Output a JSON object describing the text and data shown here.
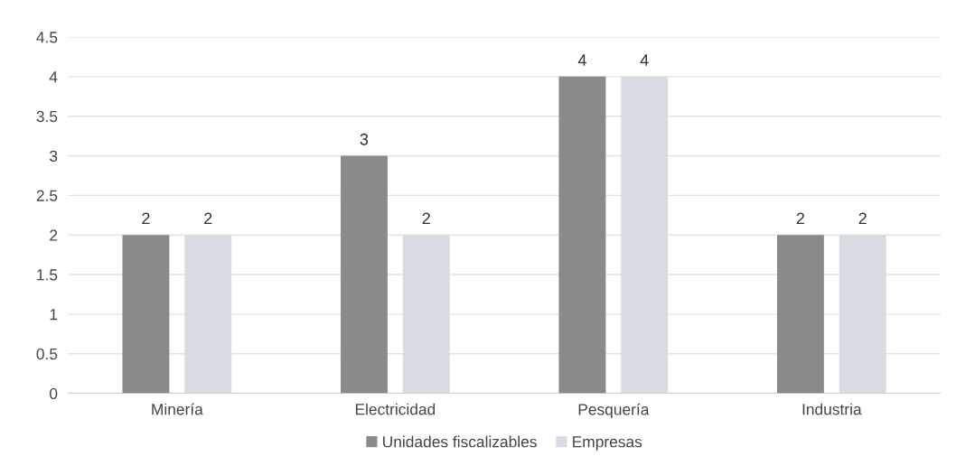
{
  "chart_data": {
    "type": "bar",
    "categories": [
      "Minería",
      "Electricidad",
      "Pesquería",
      "Industria"
    ],
    "series": [
      {
        "name": "Unidades fiscalizables",
        "color": "#8a8a8a",
        "values": [
          2,
          3,
          4,
          2
        ]
      },
      {
        "name": "Empresas",
        "color": "#d9dbe3",
        "values": [
          2,
          2,
          4,
          2
        ]
      }
    ],
    "ylim": [
      0,
      4.5
    ],
    "yticks": [
      0,
      0.5,
      1,
      1.5,
      2,
      2.5,
      3,
      3.5,
      4,
      4.5
    ],
    "grid": "y",
    "legend": "bottom",
    "data_labels": true
  }
}
